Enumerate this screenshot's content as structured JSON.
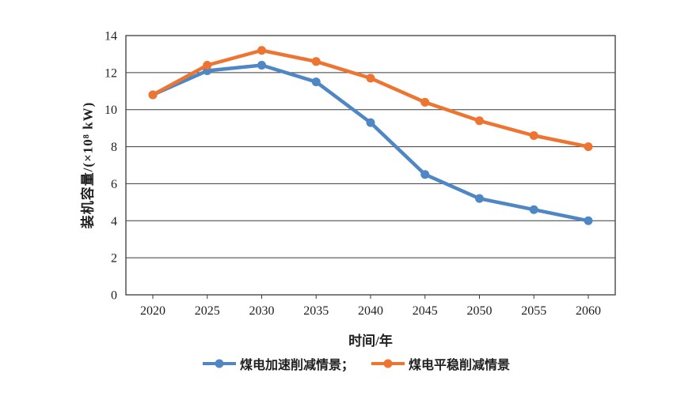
{
  "page": {
    "background": "#ffffff"
  },
  "chart_data": {
    "type": "line",
    "title": "",
    "x": [
      "2020",
      "2025",
      "2030",
      "2035",
      "2040",
      "2045",
      "2050",
      "2055",
      "2060"
    ],
    "series": [
      {
        "name": "煤电加速削减情景",
        "color": "#4E87C4",
        "values": [
          10.8,
          12.1,
          12.4,
          11.5,
          9.3,
          6.5,
          5.2,
          4.6,
          4.0
        ]
      },
      {
        "name": "煤电平稳削减情景",
        "color": "#ED7431",
        "values": [
          10.8,
          12.4,
          13.2,
          12.6,
          11.7,
          10.4,
          9.4,
          8.6,
          8.0
        ]
      }
    ],
    "xlabel": "时间/年",
    "ylabel": "装机容量/(×10⁸ kW)",
    "ylim": [
      0,
      14
    ],
    "yticks": [
      0,
      2,
      4,
      6,
      8,
      10,
      12,
      14
    ],
    "grid": "horizontal",
    "legend_position": "bottom",
    "legend": [
      {
        "label": "煤电加速削减情景；",
        "color": "#4E87C4"
      },
      {
        "label": "煤电平稳削减情景",
        "color": "#ED7431"
      }
    ],
    "axis_color": "#3a3a3a",
    "text_color": "#1f1f1f"
  }
}
